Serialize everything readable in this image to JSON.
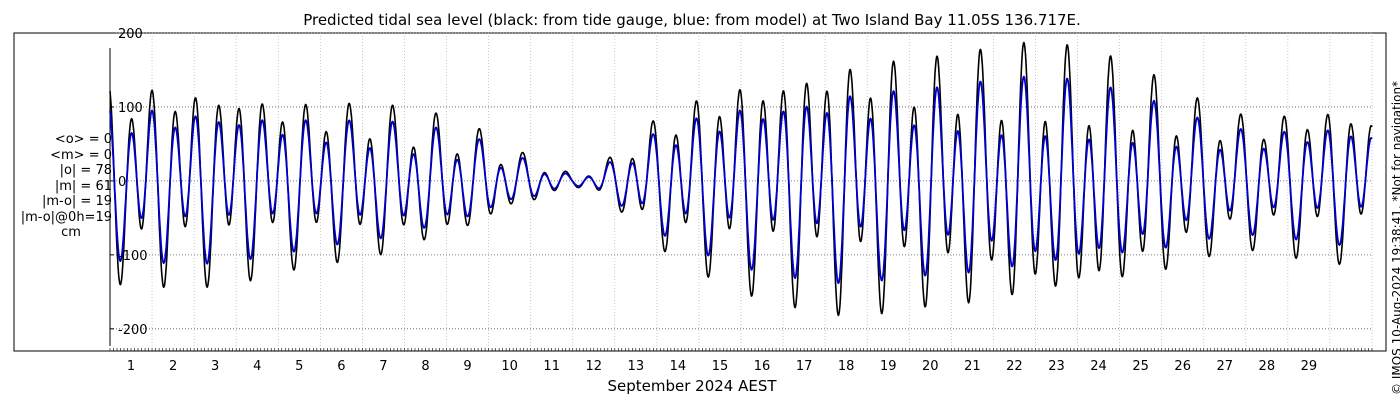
{
  "chart_data": {
    "type": "line",
    "title": "Predicted tidal sea level (black: from tide gauge, blue: from model) at Two Island Bay 11.05S 136.717E.",
    "xlabel": "September 2024 AEST",
    "ylabel": "",
    "ylim": [
      -230,
      200
    ],
    "xlim_days": [
      0,
      30
    ],
    "yticks": [
      -200,
      -100,
      0,
      100,
      200
    ],
    "xticks": [
      1,
      2,
      3,
      4,
      5,
      6,
      7,
      8,
      9,
      10,
      11,
      12,
      13,
      14,
      15,
      16,
      17,
      18,
      19,
      20,
      21,
      22,
      23,
      24,
      25,
      26,
      27,
      28,
      29
    ],
    "grid": true,
    "x_day": [
      0,
      0.5,
      1,
      1.5,
      2,
      2.5,
      3,
      3.5,
      4,
      4.5,
      5,
      5.5,
      6,
      6.5,
      7,
      7.5,
      8,
      8.5,
      9,
      9.5,
      10,
      10.5,
      11,
      11.5,
      12,
      12.5,
      13,
      13.5,
      14,
      14.5,
      15,
      15.5,
      16,
      16.5,
      17,
      17.5,
      18,
      18.5,
      19,
      19.5,
      20,
      20.5,
      21,
      21.5,
      22,
      22.5,
      23,
      23.5,
      24,
      24.5,
      25,
      25.5,
      26,
      26.5,
      27,
      27.5,
      28,
      28.5,
      29,
      29.5,
      30
    ],
    "series": [
      {
        "color": "#000000",
        "amplitude": [
          135,
          130,
          135,
          130,
          135,
          128,
          130,
          120,
          118,
          110,
          110,
          105,
          105,
          100,
          95,
          85,
          85,
          70,
          60,
          40,
          32,
          20,
          8,
          15,
          35,
          60,
          85,
          105,
          115,
          130,
          140,
          145,
          150,
          160,
          165,
          168,
          170,
          168,
          170,
          165,
          168,
          170,
          165,
          170,
          175,
          170,
          165,
          160,
          150,
          140,
          130,
          115,
          105,
          95,
          90,
          90,
          95,
          100,
          105,
          100,
          95
        ]
      },
      {
        "color": "#0000cc",
        "amplitude": [
          105,
          100,
          105,
          100,
          105,
          100,
          100,
          95,
          92,
          88,
          86,
          82,
          82,
          78,
          75,
          68,
          66,
          56,
          48,
          32,
          26,
          16,
          6,
          12,
          28,
          48,
          66,
          82,
          90,
          100,
          108,
          112,
          116,
          122,
          125,
          128,
          128,
          126,
          128,
          124,
          126,
          128,
          125,
          128,
          132,
          128,
          124,
          120,
          112,
          106,
          98,
          88,
          80,
          74,
          70,
          70,
          72,
          76,
          80,
          78,
          74
        ]
      }
    ]
  },
  "stats": {
    "lines": [
      "<o> = 0",
      "<m> = 0",
      "|o| = 78",
      "|m| = 61",
      "|m-o| = 19",
      "|m-o|@0h=19"
    ],
    "units": "cm"
  },
  "copyright": "© IMOS 10-Aug-2024 19:38:41. *Not for navigation*"
}
